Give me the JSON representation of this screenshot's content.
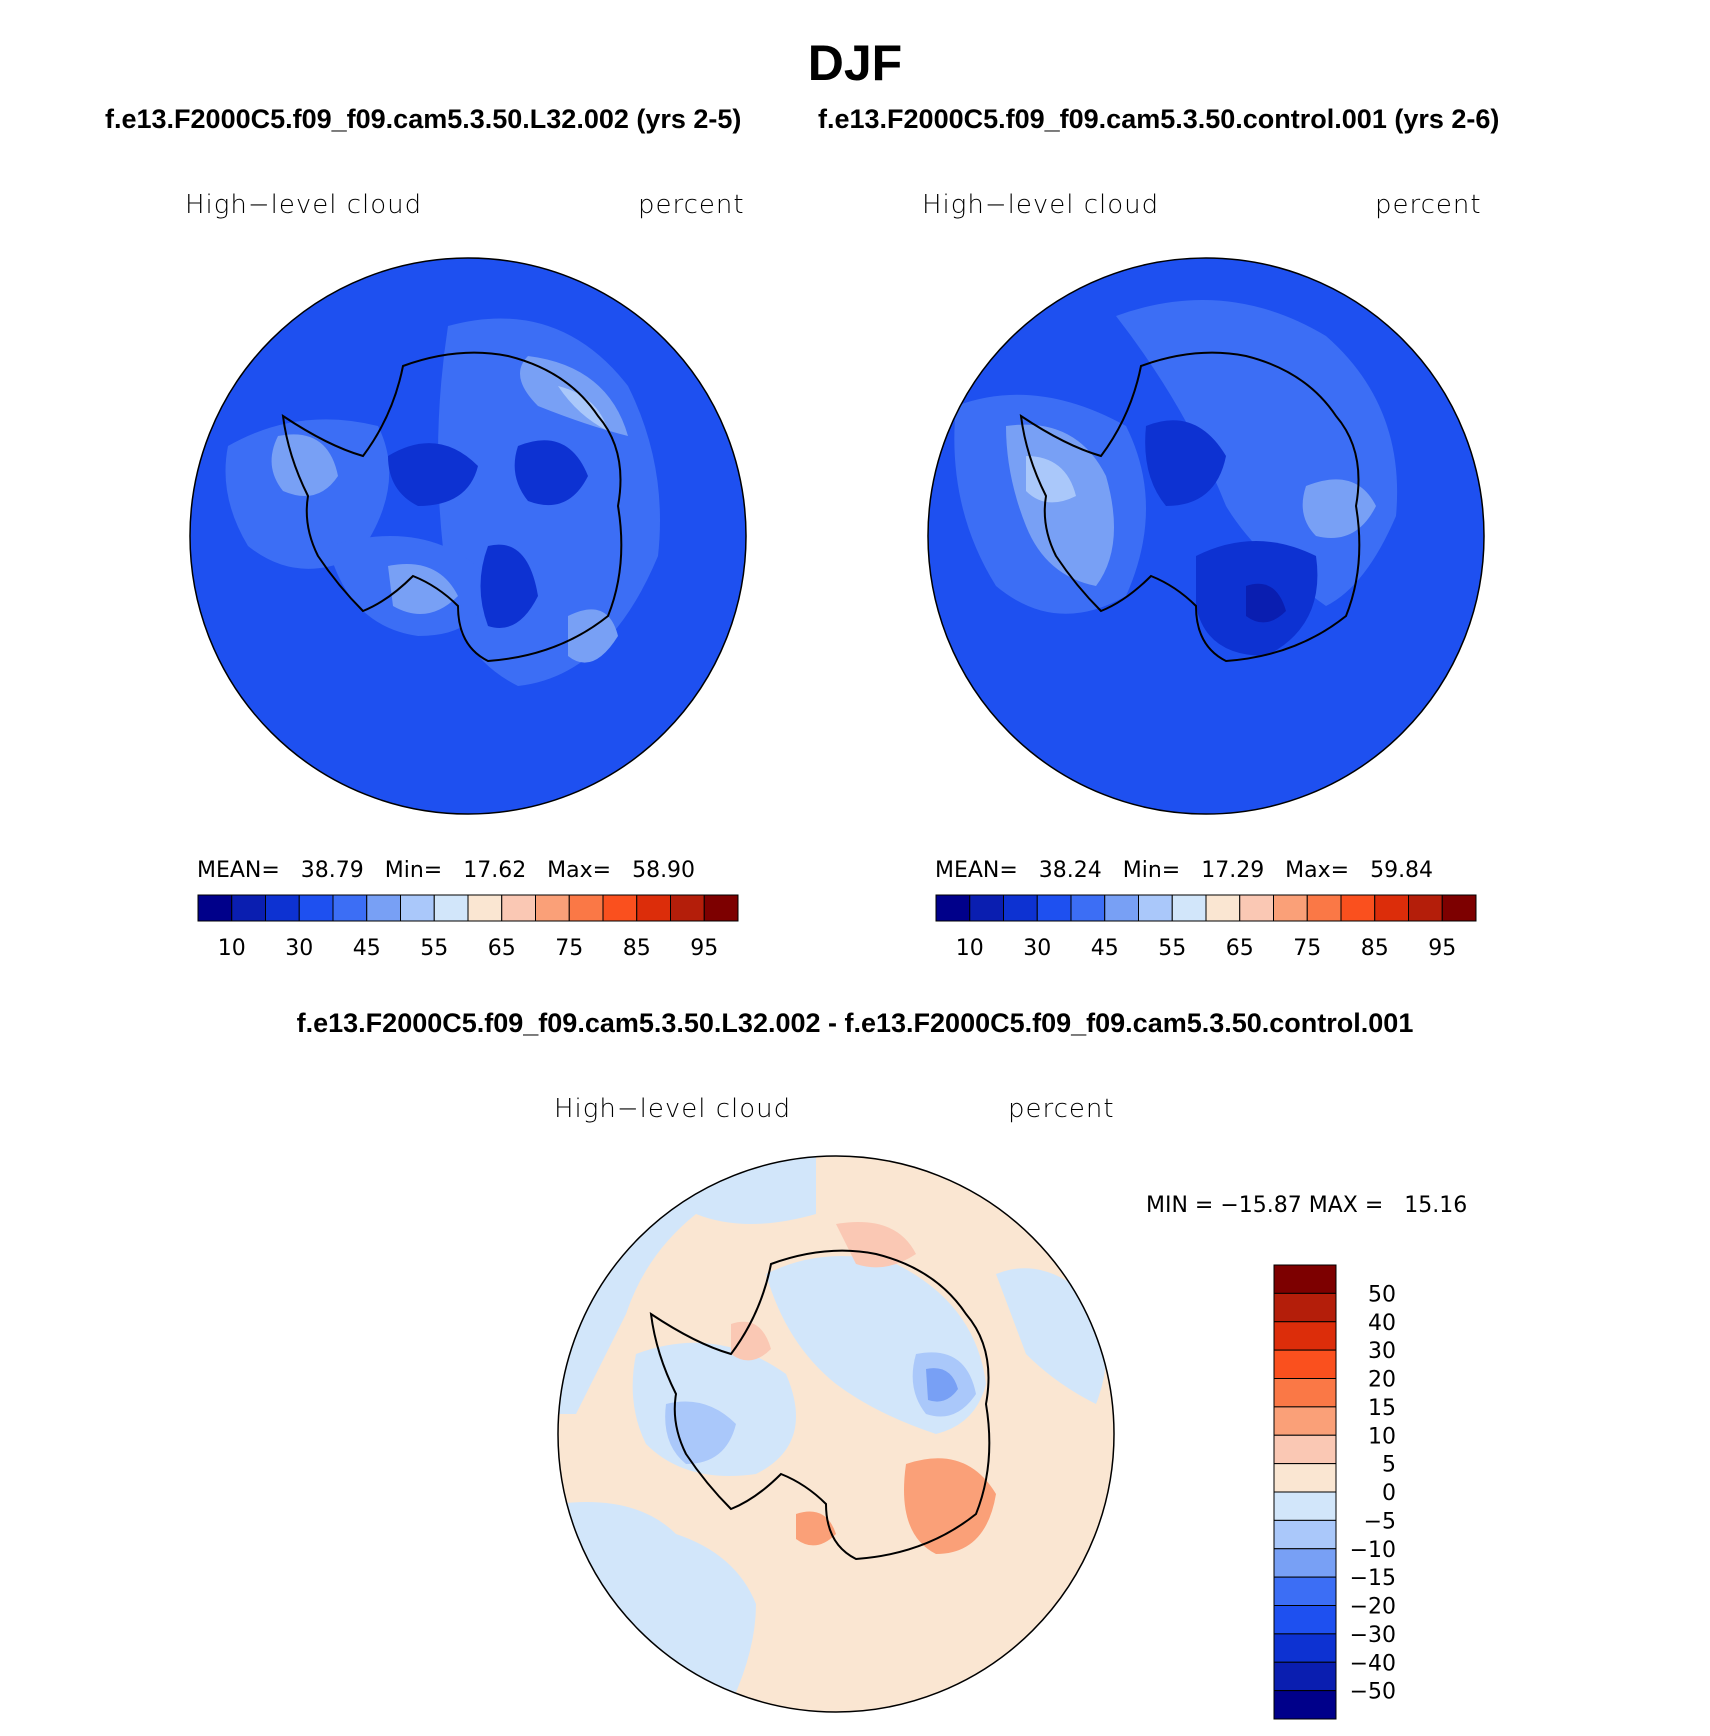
{
  "title": "DJF",
  "panels": [
    {
      "case": "f.e13.F2000C5.f09_f09.cam5.3.50.L32.002 (yrs 2-5)",
      "field": "High−level cloud",
      "units": "percent",
      "stats": "MEAN=   38.79   Min=   17.62   Max=   58.90"
    },
    {
      "case": "f.e13.F2000C5.f09_f09.cam5.3.50.control.001 (yrs 2-6)",
      "field": "High−level cloud",
      "units": "percent",
      "stats": "MEAN=   38.24   Min=   17.29   Max=   59.84"
    }
  ],
  "diff": {
    "title": "f.e13.F2000C5.f09_f09.cam5.3.50.L32.002 - f.e13.F2000C5.f09_f09.cam5.3.50.control.001",
    "field": "High−level cloud",
    "units": "percent",
    "stats": "MIN = −15.87 MAX =   15.16"
  },
  "chart_data": [
    {
      "type": "heatmap",
      "projection": "south polar stereographic",
      "field": "High-level cloud",
      "units": "percent",
      "mean": 38.79,
      "min": 17.62,
      "max": 58.9,
      "colorbar": {
        "orientation": "horizontal",
        "tick_labels": [
          "10",
          "30",
          "45",
          "55",
          "65",
          "75",
          "85",
          "95"
        ],
        "colors": [
          "#00008a",
          "#0a1eb0",
          "#0d32d2",
          "#1e50f0",
          "#3c6ef5",
          "#78a0f5",
          "#aac8fa",
          "#d2e6fa",
          "#fae6d2",
          "#fac8b4",
          "#faa078",
          "#fa7846",
          "#fa501e",
          "#dc2d0a",
          "#b41e0a",
          "#7d0000"
        ]
      }
    },
    {
      "type": "heatmap",
      "projection": "south polar stereographic",
      "field": "High-level cloud",
      "units": "percent",
      "mean": 38.24,
      "min": 17.29,
      "max": 59.84,
      "colorbar": {
        "orientation": "horizontal",
        "tick_labels": [
          "10",
          "30",
          "45",
          "55",
          "65",
          "75",
          "85",
          "95"
        ],
        "colors": [
          "#00008a",
          "#0a1eb0",
          "#0d32d2",
          "#1e50f0",
          "#3c6ef5",
          "#78a0f5",
          "#aac8fa",
          "#d2e6fa",
          "#fae6d2",
          "#fac8b4",
          "#faa078",
          "#fa7846",
          "#fa501e",
          "#dc2d0a",
          "#b41e0a",
          "#7d0000"
        ]
      }
    },
    {
      "type": "heatmap",
      "projection": "south polar stereographic",
      "field": "High-level cloud",
      "units": "percent",
      "min": -15.87,
      "max": 15.16,
      "colorbar": {
        "orientation": "vertical",
        "tick_labels": [
          "50",
          "40",
          "30",
          "20",
          "15",
          "10",
          "5",
          "0",
          "−5",
          "−10",
          "−15",
          "−20",
          "−30",
          "−40",
          "−50"
        ],
        "colors": [
          "#7d0000",
          "#b41e0a",
          "#dc2d0a",
          "#fa501e",
          "#fa7846",
          "#faa078",
          "#fac8b4",
          "#fae6d2",
          "#d2e6fa",
          "#aac8fa",
          "#78a0f5",
          "#3c6ef5",
          "#1e50f0",
          "#0d32d2",
          "#0a1eb0",
          "#00008a"
        ]
      }
    }
  ]
}
